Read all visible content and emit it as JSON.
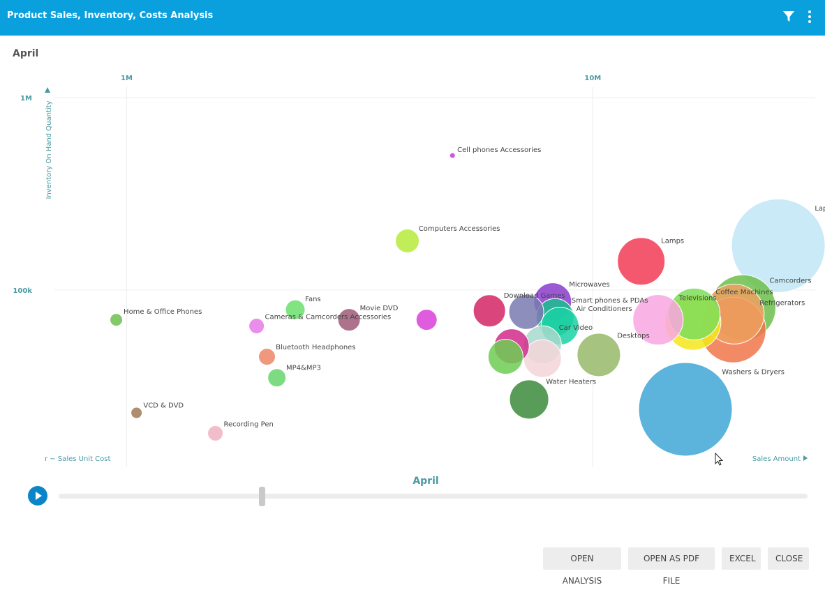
{
  "header": {
    "title": "Product Sales, Inventory, Costs Analysis",
    "filter_icon": "filter-icon",
    "menu_icon": "more-vertical-icon",
    "bg_color": "#0aa0dd"
  },
  "period_label": "April",
  "slider": {
    "label": "April",
    "play_icon": "play-icon"
  },
  "buttons": {
    "open_analysis": "OPEN ANALYSIS",
    "open_pdf": "OPEN AS PDF FILE",
    "excel": "EXCEL",
    "close": "CLOSE"
  },
  "chart_data": {
    "type": "scatter",
    "subtype": "bubble",
    "xlabel": "Sales Amount",
    "ylabel": "Inventory On Hand Quantity",
    "size_label": "r ~ Sales Unit Cost",
    "x_scale": "log",
    "y_scale": "log",
    "xlim": [
      700000,
      30000000
    ],
    "ylim": [
      12000,
      1000000
    ],
    "x_ticks": [
      {
        "value": 1000000,
        "label": "1M"
      },
      {
        "value": 10000000,
        "label": "10M"
      }
    ],
    "y_ticks": [
      {
        "value": 100000,
        "label": "100k"
      },
      {
        "value": 1000000,
        "label": "1M"
      }
    ],
    "grid": true,
    "points": [
      {
        "name": "Laptops",
        "x": 25000000,
        "y": 170000,
        "r": 67,
        "color": "#bfe6f5"
      },
      {
        "name": "Washers & Dryers",
        "x": 15800000,
        "y": 24000,
        "r": 67,
        "color": "#3fa6d6"
      },
      {
        "name": "Camcorders",
        "x": 21000000,
        "y": 81000,
        "r": 47,
        "color": "#6cc04a"
      },
      {
        "name": "Refrigerators",
        "x": 20000000,
        "y": 62000,
        "r": 47,
        "color": "#f0764a"
      },
      {
        "name": "",
        "x": 20100000,
        "y": 75000,
        "r": 43,
        "color": "#f0a060"
      },
      {
        "name": "",
        "x": 16400000,
        "y": 68000,
        "r": 40,
        "color": "#f5e61a"
      },
      {
        "name": "Coffee Machines",
        "x": 16500000,
        "y": 75000,
        "r": 37,
        "color": "#7cdd5a"
      },
      {
        "name": "Televisions",
        "x": 13800000,
        "y": 70000,
        "r": 36,
        "color": "#f9a6e0"
      },
      {
        "name": "Lamps",
        "x": 12700000,
        "y": 141000,
        "r": 34,
        "color": "#f23b55"
      },
      {
        "name": "Microwaves",
        "x": 8200000,
        "y": 87000,
        "r": 27,
        "color": "#8a3dcc"
      },
      {
        "name": "Smart phones & PDAs",
        "x": 8300000,
        "y": 72000,
        "r": 27,
        "color": "#1abf8f"
      },
      {
        "name": "Air Conditioners",
        "x": 8500000,
        "y": 65000,
        "r": 27,
        "color": "#1ad1a4"
      },
      {
        "name": "Desktops",
        "x": 10300000,
        "y": 46000,
        "r": 31,
        "color": "#96b86a"
      },
      {
        "name": "Water Heaters",
        "x": 7300000,
        "y": 27000,
        "r": 28,
        "color": "#3c8a3c"
      },
      {
        "name": "Download Games",
        "x": 6000000,
        "y": 78000,
        "r": 23,
        "color": "#d42665"
      },
      {
        "name": "",
        "x": 7200000,
        "y": 77000,
        "r": 25,
        "color": "#7a7ab0"
      },
      {
        "name": "Car Video",
        "x": 7800000,
        "y": 52000,
        "r": 27,
        "color": "#a8d8cc"
      },
      {
        "name": "",
        "x": 6700000,
        "y": 51000,
        "r": 25,
        "color": "#d12a8a"
      },
      {
        "name": "",
        "x": 6500000,
        "y": 45000,
        "r": 25,
        "color": "#6dcc52"
      },
      {
        "name": "",
        "x": 7800000,
        "y": 44000,
        "r": 27,
        "color": "#f5d5d8"
      },
      {
        "name": "Computers Accessories",
        "x": 4000000,
        "y": 180000,
        "r": 17,
        "color": "#b6ea3c"
      },
      {
        "name": "Cell phones Accessories",
        "x": 5000000,
        "y": 500000,
        "r": 4,
        "color": "#c43cd8"
      },
      {
        "name": "Movie DVD",
        "x": 3000000,
        "y": 70000,
        "r": 16,
        "color": "#a05a78"
      },
      {
        "name": "",
        "x": 4400000,
        "y": 70000,
        "r": 15,
        "color": "#d940d8"
      },
      {
        "name": "Fans",
        "x": 2300000,
        "y": 79000,
        "r": 14,
        "color": "#6cde6c"
      },
      {
        "name": "Cameras & Camcorders Accessories",
        "x": 1900000,
        "y": 65000,
        "r": 11,
        "color": "#e87ae8"
      },
      {
        "name": "Home & Office Phones",
        "x": 950000,
        "y": 70000,
        "r": 9,
        "color": "#6cc050"
      },
      {
        "name": "Bluetooth Headphones",
        "x": 2000000,
        "y": 45000,
        "r": 12,
        "color": "#ec8666"
      },
      {
        "name": "MP4&MP3",
        "x": 2100000,
        "y": 35000,
        "r": 13,
        "color": "#66d66c"
      },
      {
        "name": "VCD & DVD",
        "x": 1050000,
        "y": 23000,
        "r": 8,
        "color": "#a07a56"
      },
      {
        "name": "Recording Pen",
        "x": 1550000,
        "y": 18000,
        "r": 11,
        "color": "#f0b2c2"
      }
    ]
  }
}
